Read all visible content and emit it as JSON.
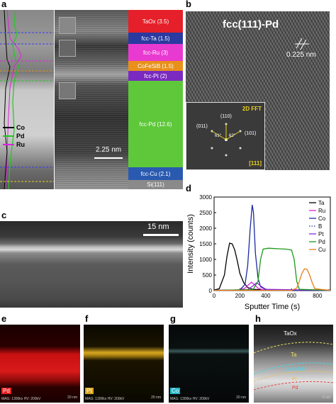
{
  "panels": {
    "a": {
      "letter": "a",
      "legend": [
        {
          "name": "Co",
          "color": "#000000"
        },
        {
          "name": "Pd",
          "color": "#22c822"
        },
        {
          "name": "Ru",
          "color": "#e020e0"
        }
      ],
      "scalebar": "2.25 nm",
      "layers": [
        {
          "label": "TaOx (3.5)",
          "color": "#e5202a"
        },
        {
          "label": "fcc-Ta (1.5)",
          "color": "#2a3aa0"
        },
        {
          "label": "fcc-Ru (3)",
          "color": "#e83ad0"
        },
        {
          "label": "CoFeSiB (1.5)",
          "color": "#e8901a"
        },
        {
          "label": "fcc-Pt (2)",
          "color": "#7a2ac0"
        },
        {
          "label": "fcc-Pd (12.6)",
          "color": "#5ec83a"
        },
        {
          "label": "fcc-Cu (2.1)",
          "color": "#2a5ab0"
        },
        {
          "label": "Si(111)",
          "color": "#8a8a8a"
        }
      ]
    },
    "b": {
      "letter": "b",
      "title": "fcc(111)-Pd",
      "spacing": "0.225 nm",
      "fft_title": "2D FFT",
      "zone_axis": "[111]",
      "spots": [
        "(110)",
        "(011)",
        "(101)"
      ],
      "angles": [
        "61°",
        "62°"
      ]
    },
    "c": {
      "letter": "c",
      "scalebar": "15 nm"
    },
    "d": {
      "letter": "d"
    },
    "e": {
      "letter": "e",
      "element": "Pd",
      "element_color": "#e52020",
      "info": "MAG: 1300kx  HV: 200kV",
      "scale": "20 nm"
    },
    "f": {
      "letter": "f",
      "element": "Pt",
      "element_color": "#d8a820",
      "info": "MAG: 1300kx  HV: 200kV",
      "scale": "20 nm"
    },
    "g": {
      "letter": "g",
      "element": "Co",
      "element_color": "#20b8c8",
      "info": "MAG: 1300kx  HV: 200kV",
      "scale": "20 nm"
    },
    "h": {
      "letter": "h",
      "labels": [
        {
          "text": "TaOx",
          "color": "#ffffff"
        },
        {
          "text": "Ta",
          "color": "#e8e060"
        },
        {
          "text": "CoFeSiB",
          "color": "#40d8f0"
        },
        {
          "text": "Pt",
          "color": "#e8c060"
        },
        {
          "text": "Pd",
          "color": "#e84040"
        }
      ],
      "scale": "5 nm"
    }
  },
  "chart_data": {
    "type": "line",
    "xlabel": "Sputter Time (s)",
    "ylabel": "Intensity (counts)",
    "xlim": [
      0,
      900
    ],
    "ylim": [
      0,
      3000
    ],
    "xticks": [
      0,
      200,
      400,
      600,
      800
    ],
    "yticks": [
      0,
      500,
      1000,
      1500,
      2000,
      2500,
      3000
    ],
    "legend_position": "top-right",
    "series": [
      {
        "name": "Ta",
        "color": "#000000",
        "style": "solid",
        "x": [
          0,
          40,
          80,
          100,
          120,
          140,
          160,
          180,
          200,
          230,
          260,
          300,
          400,
          900
        ],
        "y": [
          20,
          60,
          500,
          1100,
          1520,
          1500,
          1300,
          950,
          550,
          250,
          100,
          40,
          20,
          20
        ]
      },
      {
        "name": "Ru",
        "color": "#e020e0",
        "style": "solid",
        "x": [
          0,
          200,
          240,
          270,
          290,
          310,
          340,
          380,
          900
        ],
        "y": [
          10,
          20,
          80,
          200,
          270,
          200,
          80,
          20,
          10
        ]
      },
      {
        "name": "Co",
        "color": "#1a2aa0",
        "style": "solid",
        "x": [
          0,
          200,
          240,
          260,
          280,
          295,
          305,
          320,
          340,
          360,
          400,
          900
        ],
        "y": [
          10,
          20,
          200,
          800,
          2000,
          2750,
          2500,
          1200,
          400,
          120,
          30,
          10
        ]
      },
      {
        "name": "B",
        "color": "#1a2aa0",
        "style": "dotted",
        "x": [
          0,
          250,
          290,
          320,
          360,
          900
        ],
        "y": [
          0,
          10,
          40,
          20,
          5,
          0
        ]
      },
      {
        "name": "Pt",
        "color": "#8a2ae0",
        "style": "solid",
        "x": [
          0,
          260,
          300,
          330,
          360,
          400,
          900
        ],
        "y": [
          10,
          30,
          150,
          250,
          150,
          40,
          10
        ]
      },
      {
        "name": "Pd",
        "color": "#1a9a1a",
        "style": "solid",
        "x": [
          0,
          300,
          340,
          360,
          380,
          420,
          500,
          560,
          600,
          620,
          640,
          660,
          900
        ],
        "y": [
          10,
          30,
          300,
          1000,
          1330,
          1360,
          1340,
          1330,
          1300,
          1000,
          300,
          40,
          10
        ]
      },
      {
        "name": "Cu",
        "color": "#e8801a",
        "style": "solid",
        "x": [
          0,
          600,
          640,
          660,
          680,
          700,
          720,
          740,
          760,
          780,
          900
        ],
        "y": [
          10,
          10,
          80,
          300,
          550,
          700,
          680,
          500,
          250,
          60,
          10
        ]
      }
    ]
  }
}
